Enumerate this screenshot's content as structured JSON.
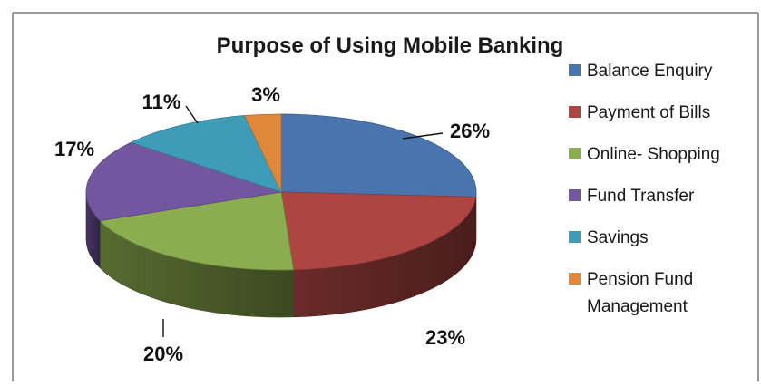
{
  "chart_data": {
    "type": "pie",
    "title": "Purpose of Using Mobile Banking",
    "categories": [
      "Balance Enquiry",
      "Payment of Bills",
      "Online- Shopping",
      "Fund Transfer",
      "Savings",
      "Pension Fund Management"
    ],
    "values": [
      26,
      23,
      20,
      17,
      11,
      3
    ],
    "data_labels": [
      "26%",
      "23%",
      "20%",
      "17%",
      "11%",
      "3%"
    ],
    "legend_position": "right",
    "three_d": true,
    "colors": [
      "#4a74ad",
      "#ad4643",
      "#8cad4f",
      "#7356a0",
      "#3e9cb8",
      "#e0873a"
    ]
  }
}
